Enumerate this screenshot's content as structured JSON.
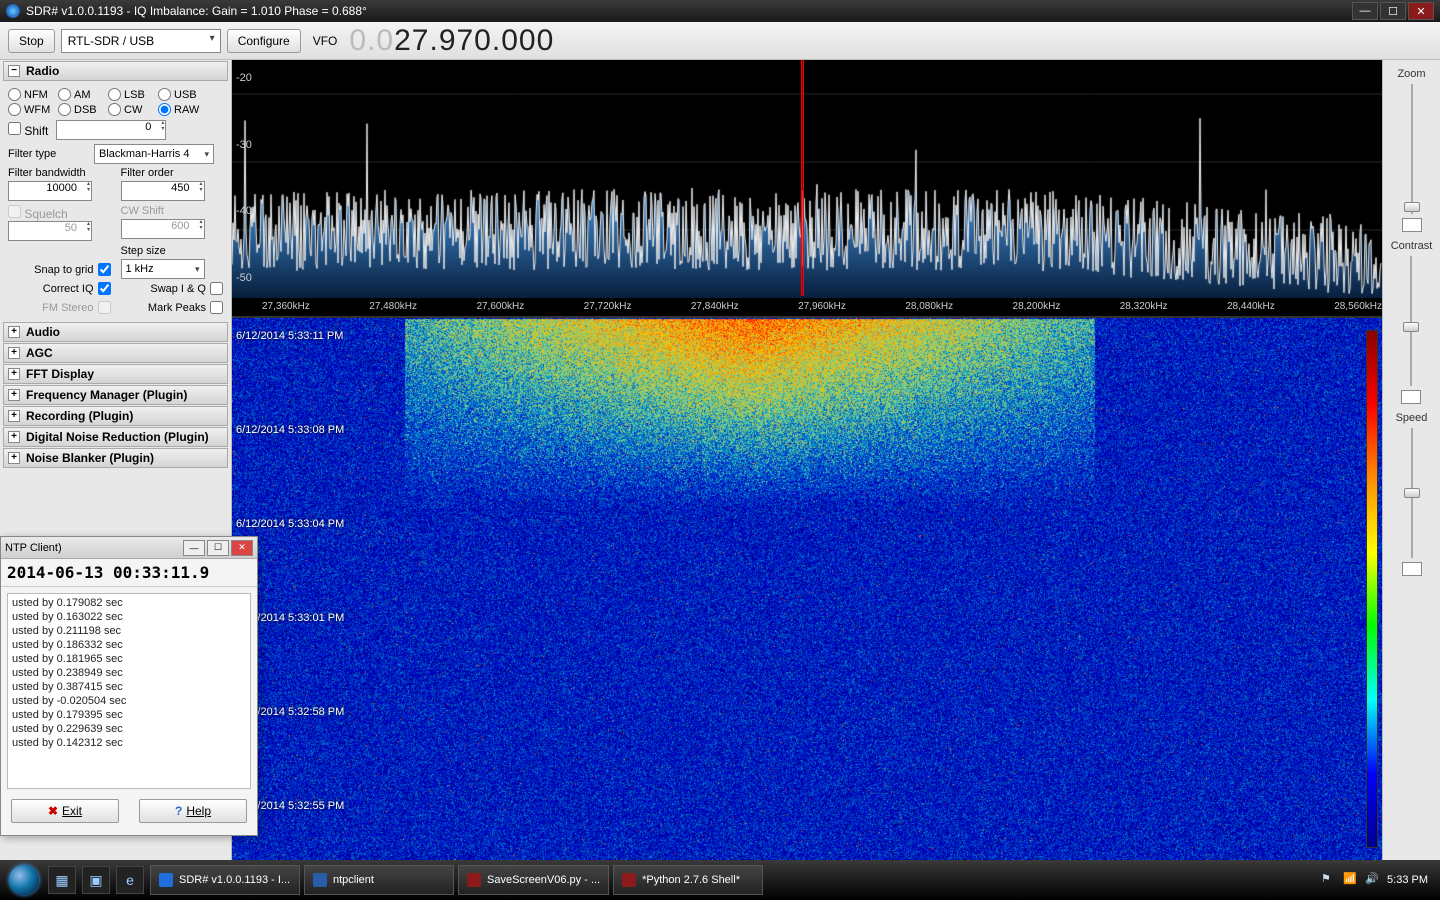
{
  "window": {
    "title": "SDR# v1.0.0.1193 - IQ Imbalance: Gain = 1.010 Phase = 0.688°"
  },
  "toolbar": {
    "stop": "Stop",
    "source_selected": "RTL-SDR / USB",
    "configure": "Configure",
    "vfo_label": "VFO",
    "vfo_dim": "0.0",
    "vfo_freq": "27.970.000"
  },
  "radio_panel": {
    "title": "Radio",
    "modes_row1": [
      "NFM",
      "AM",
      "LSB",
      "USB"
    ],
    "modes_row2": [
      "WFM",
      "DSB",
      "CW",
      "RAW"
    ],
    "selected_mode": "RAW",
    "shift_label": "Shift",
    "shift_value": "0",
    "filter_type_label": "Filter type",
    "filter_type_value": "Blackman-Harris 4",
    "filter_bandwidth_label": "Filter bandwidth",
    "filter_bandwidth_value": "10000",
    "filter_order_label": "Filter order",
    "filter_order_value": "450",
    "squelch_label": "Squelch",
    "squelch_value": "50",
    "cw_shift_label": "CW Shift",
    "cw_shift_value": "600",
    "step_size_label": "Step size",
    "step_size_value": "1 kHz",
    "snap_to_grid_label": "Snap to grid",
    "correct_iq_label": "Correct IQ",
    "swap_iq_label": "Swap I & Q",
    "fm_stereo_label": "FM Stereo",
    "mark_peaks_label": "Mark Peaks"
  },
  "collapsed_panels": [
    "Audio",
    "AGC",
    "FFT Display",
    "Frequency Manager (Plugin)",
    "Recording (Plugin)",
    "Digital Noise Reduction (Plugin)",
    "Noise Blanker (Plugin)"
  ],
  "spectrum": {
    "y_ticks": [
      "-20",
      "-30",
      "-40",
      "-50"
    ],
    "x_ticks": [
      "27,360kHz",
      "27,480kHz",
      "27,600kHz",
      "27,720kHz",
      "27,840kHz",
      "27,960kHz",
      "28,080kHz",
      "28,200kHz",
      "28,320kHz",
      "28,440kHz",
      "28,560kHz"
    ],
    "ylim": [
      -50,
      -15
    ],
    "tune_position_pct": 49.5,
    "noise_floor_db": -40,
    "noise_jitter_db": 6,
    "trace_color": "#eeeeee",
    "fill_gradient_top": "#4a9be8",
    "fill_gradient_bottom": "#071f3d",
    "background": "#000000",
    "grid_color": "#2a2a2a"
  },
  "waterfall": {
    "timestamps": [
      "6/12/2014 5:33:11 PM",
      "6/12/2014 5:33:08 PM",
      "6/12/2014 5:33:04 PM",
      "6/12/2014 5:33:01 PM",
      "6/12/2014 5:32:58 PM",
      "6/12/2014 5:32:55 PM"
    ],
    "gradient_stops": [
      "#8b0000",
      "#ff0000",
      "#ff8c00",
      "#ffff00",
      "#00ff00",
      "#00ffff",
      "#0000ff",
      "#00008b"
    ],
    "base_color": "#001a4d",
    "hot_region": {
      "x_start_pct": 15,
      "x_end_pct": 75,
      "y_start_pct": 0,
      "y_end_pct": 35
    }
  },
  "rail": {
    "zoom_label": "Zoom",
    "contrast_label": "Contrast",
    "speed_label": "Speed",
    "zoom_pos_pct": 98,
    "contrast_pos_pct": 55,
    "speed_pos_pct": 50
  },
  "ntp": {
    "title": "NTP Client)",
    "time": "2014-06-13 00:33:11.9",
    "log_lines": [
      "usted by 0.179082 sec",
      "usted by 0.163022 sec",
      "usted by 0.211198 sec",
      "usted by 0.186332 sec",
      "usted by 0.181965 sec",
      "usted by 0.238949 sec",
      "usted by 0.387415 sec",
      "usted by -0.020504 sec",
      "usted by 0.179395 sec",
      "usted by 0.229639 sec",
      "usted by 0.142312 sec"
    ],
    "exit_label": "Exit",
    "help_label": "Help"
  },
  "taskbar": {
    "tasks": [
      {
        "label": "SDR# v1.0.0.1193 - I...",
        "color": "#1e6fd9"
      },
      {
        "label": "ntpclient",
        "color": "#2a5caa"
      },
      {
        "label": "SaveScreenV06.py - ...",
        "color": "#8b1a1a"
      },
      {
        "label": "*Python 2.7.6 Shell*",
        "color": "#8b1a1a"
      }
    ],
    "clock": "5:33 PM"
  }
}
